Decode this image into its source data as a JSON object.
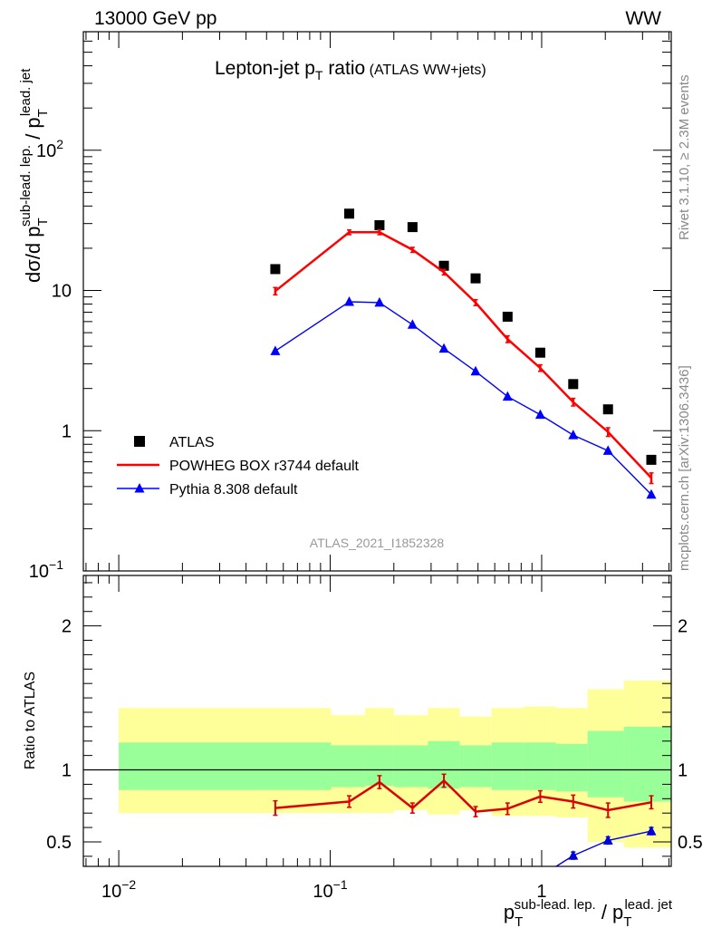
{
  "header": {
    "left": "13000 GeV pp",
    "right": "WW"
  },
  "side_labels": {
    "rivet": "Rivet 3.1.10, ≥ 2.3M events",
    "mcplots": "mcplots.cern.ch [arXiv:1306.3436]"
  },
  "chart_data": [
    {
      "type": "line",
      "title": "Lepton-jet pT ratio",
      "title_main": "Lepton-jet p",
      "title_sub": "T",
      "title_suffix": " ratio",
      "title_note": "(ATLAS WW+jets)",
      "watermark": "ATLAS_2021_I1852328",
      "ylabel": "dσ/d p_T^{sub-lead. lep.} / p_T^{lead. jet}",
      "ylabel_parts": {
        "base": "dσ/d p",
        "sup1": "sub-lead. lep.",
        "sub1": "T",
        "mid": " / p",
        "sup2": "lead. jet",
        "sub2": "T"
      },
      "yscale": "log",
      "ylim": [
        0.1,
        700
      ],
      "xscale": "log",
      "xlim": [
        0.0068,
        4.1
      ],
      "y_ticks": [
        {
          "value": 0.1,
          "label": "10",
          "exp": "−1"
        },
        {
          "value": 1,
          "label": "1",
          "exp": ""
        },
        {
          "value": 10,
          "label": "10",
          "exp": ""
        },
        {
          "value": 100,
          "label": "10",
          "exp": "2"
        }
      ],
      "legend_placement": "bottom-left",
      "series": [
        {
          "name": "ATLAS",
          "color": "#000000",
          "marker": "square",
          "x": [
            0.055,
            0.123,
            0.171,
            0.245,
            0.345,
            0.487,
            0.69,
            0.985,
            1.41,
            2.06,
            3.3
          ],
          "y": [
            14.2,
            35.3,
            29.2,
            28.3,
            15.0,
            12.2,
            6.5,
            3.6,
            2.15,
            1.42,
            0.62
          ]
        },
        {
          "name": "POWHEG BOX r3744 default",
          "color": "#ff0000",
          "marker": "line",
          "x": [
            0.055,
            0.123,
            0.171,
            0.245,
            0.345,
            0.487,
            0.69,
            0.985,
            1.41,
            2.06,
            3.3
          ],
          "y": [
            9.9,
            26.0,
            26.0,
            19.5,
            13.5,
            8.2,
            4.5,
            2.8,
            1.6,
            0.98,
            0.46
          ],
          "yerr": [
            0.6,
            1.0,
            1.0,
            0.8,
            0.6,
            0.4,
            0.25,
            0.15,
            0.1,
            0.07,
            0.04
          ]
        },
        {
          "name": "Pythia 8.308 default",
          "color": "#0000ff",
          "marker": "triangle",
          "x": [
            0.055,
            0.123,
            0.171,
            0.245,
            0.345,
            0.487,
            0.69,
            0.985,
            1.41,
            2.06,
            3.3
          ],
          "y": [
            3.7,
            8.3,
            8.2,
            5.7,
            3.85,
            2.65,
            1.75,
            1.3,
            0.93,
            0.72,
            0.35
          ]
        }
      ]
    },
    {
      "type": "line",
      "ylabel": "Ratio to ATLAS",
      "xlabel": "p_T^{sub-lead. lep.} / p_T^{lead. jet}",
      "xlabel_parts": {
        "base": "p",
        "sup1": "sub-lead. lep.",
        "sub1": "T",
        "mid": " / p",
        "sup2": "lead. jet",
        "sub2": "T"
      },
      "yscale": "linear",
      "ylim": [
        0.33,
        2.35
      ],
      "xscale": "log",
      "xlim": [
        0.0068,
        4.1
      ],
      "y_ticks": [
        0.5,
        1,
        2
      ],
      "x_ticks": [
        {
          "value": 0.01,
          "label": "10",
          "exp": "−2"
        },
        {
          "value": 0.1,
          "label": "10",
          "exp": "−1"
        },
        {
          "value": 1,
          "label": "1",
          "exp": ""
        }
      ],
      "reference_line": 1,
      "bands": [
        {
          "x_low": 0.01,
          "x_high": 0.101,
          "y_outer": [
            0.7,
            1.43
          ],
          "y_inner": [
            0.86,
            1.19
          ]
        },
        {
          "x_low": 0.101,
          "x_high": 0.146,
          "y_outer": [
            0.7,
            1.38
          ],
          "y_inner": [
            0.88,
            1.17
          ]
        },
        {
          "x_low": 0.146,
          "x_high": 0.2,
          "y_outer": [
            0.7,
            1.43
          ],
          "y_inner": [
            0.89,
            1.17
          ]
        },
        {
          "x_low": 0.2,
          "x_high": 0.29,
          "y_outer": [
            0.72,
            1.38
          ],
          "y_inner": [
            0.88,
            1.17
          ]
        },
        {
          "x_low": 0.29,
          "x_high": 0.41,
          "y_outer": [
            0.69,
            1.43
          ],
          "y_inner": [
            0.87,
            1.2
          ]
        },
        {
          "x_low": 0.41,
          "x_high": 0.58,
          "y_outer": [
            0.72,
            1.37
          ],
          "y_inner": [
            0.88,
            1.17
          ]
        },
        {
          "x_low": 0.58,
          "x_high": 0.82,
          "y_outer": [
            0.68,
            1.43
          ],
          "y_inner": [
            0.86,
            1.19
          ]
        },
        {
          "x_low": 0.82,
          "x_high": 1.17,
          "y_outer": [
            0.68,
            1.44
          ],
          "y_inner": [
            0.86,
            1.19
          ]
        },
        {
          "x_low": 1.17,
          "x_high": 1.65,
          "y_outer": [
            0.67,
            1.43
          ],
          "y_inner": [
            0.85,
            1.18
          ]
        },
        {
          "x_low": 1.65,
          "x_high": 2.45,
          "y_outer": [
            0.5,
            1.56
          ],
          "y_inner": [
            0.81,
            1.27
          ]
        },
        {
          "x_low": 2.45,
          "x_high": 4.1,
          "y_outer": [
            0.46,
            1.62
          ],
          "y_inner": [
            0.78,
            1.3
          ]
        }
      ],
      "band_colors": {
        "outer": "#ffff99",
        "inner": "#99ff99"
      },
      "series": [
        {
          "name": "POWHEG BOX r3744 default",
          "color": "#dd0000",
          "x": [
            0.055,
            0.123,
            0.171,
            0.245,
            0.345,
            0.487,
            0.69,
            0.985,
            1.41,
            2.06,
            3.3
          ],
          "y": [
            0.735,
            0.78,
            0.915,
            0.735,
            0.925,
            0.71,
            0.73,
            0.815,
            0.78,
            0.72,
            0.775
          ],
          "yerr": [
            0.05,
            0.04,
            0.045,
            0.035,
            0.045,
            0.035,
            0.04,
            0.04,
            0.045,
            0.05,
            0.045
          ]
        },
        {
          "name": "Pythia 8.308 default",
          "color": "#0000dd",
          "x": [
            0.985,
            1.41,
            2.06,
            3.3
          ],
          "y": [
            0.26,
            0.405,
            0.51,
            0.575
          ],
          "yerr": [
            0.02,
            0.025,
            0.025,
            0.025
          ]
        }
      ]
    }
  ]
}
